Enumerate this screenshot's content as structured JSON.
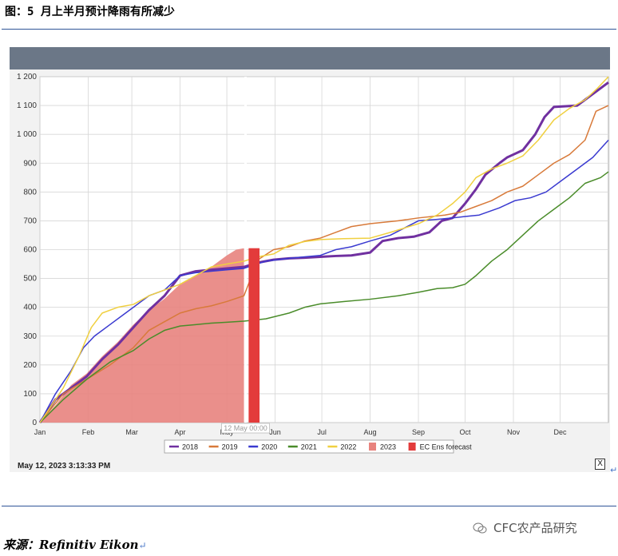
{
  "title": "图：5 月上半月预计降雨有所减少",
  "timestamp": "May 12, 2023 3:13:33 PM",
  "close_label": "X",
  "source_label": "来源：Refinitiv Eikon",
  "brand_label": "CFC农产品研究",
  "chart_data": {
    "type": "line",
    "ylim": [
      0,
      1200
    ],
    "yticks": [
      0,
      100,
      200,
      300,
      400,
      500,
      600,
      700,
      800,
      900,
      1000,
      1100,
      1200
    ],
    "ytick_labels": [
      "0",
      "100",
      "200",
      "300",
      "400",
      "500",
      "600",
      "700",
      "800",
      "900",
      "1 000",
      "1 100",
      "1 200"
    ],
    "x_domain": [
      0,
      365
    ],
    "months": [
      "Jan",
      "Feb",
      "Mar",
      "Apr",
      "May",
      "Jun",
      "Jul",
      "Aug",
      "Sep",
      "Oct",
      "Nov",
      "Dec"
    ],
    "month_days": [
      0,
      31,
      59,
      90,
      120,
      151,
      181,
      212,
      243,
      273,
      304,
      334
    ],
    "cursor_label": "12 May 00:00",
    "cursor_day": 132,
    "series": [
      {
        "name": "2018",
        "color": "#7030a0",
        "width": 3,
        "points": [
          [
            0,
            0
          ],
          [
            10,
            80
          ],
          [
            20,
            120
          ],
          [
            30,
            160
          ],
          [
            40,
            220
          ],
          [
            50,
            270
          ],
          [
            60,
            330
          ],
          [
            70,
            390
          ],
          [
            80,
            440
          ],
          [
            90,
            510
          ],
          [
            100,
            525
          ],
          [
            110,
            530
          ],
          [
            120,
            535
          ],
          [
            131,
            540
          ],
          [
            140,
            555
          ],
          [
            150,
            565
          ],
          [
            160,
            570
          ],
          [
            170,
            572
          ],
          [
            180,
            575
          ],
          [
            190,
            578
          ],
          [
            200,
            580
          ],
          [
            212,
            590
          ],
          [
            220,
            630
          ],
          [
            230,
            640
          ],
          [
            240,
            645
          ],
          [
            250,
            660
          ],
          [
            258,
            700
          ],
          [
            265,
            710
          ],
          [
            273,
            760
          ],
          [
            280,
            810
          ],
          [
            286,
            860
          ],
          [
            295,
            900
          ],
          [
            300,
            920
          ],
          [
            310,
            945
          ],
          [
            318,
            1000
          ],
          [
            324,
            1060
          ],
          [
            330,
            1095
          ],
          [
            345,
            1100
          ],
          [
            365,
            1180
          ]
        ]
      },
      {
        "name": "2019",
        "color": "#d87a3a",
        "width": 1.5,
        "points": [
          [
            0,
            0
          ],
          [
            15,
            100
          ],
          [
            30,
            150
          ],
          [
            45,
            200
          ],
          [
            60,
            260
          ],
          [
            70,
            320
          ],
          [
            80,
            350
          ],
          [
            90,
            380
          ],
          [
            100,
            395
          ],
          [
            110,
            405
          ],
          [
            120,
            420
          ],
          [
            131,
            440
          ],
          [
            140,
            565
          ],
          [
            150,
            600
          ],
          [
            160,
            610
          ],
          [
            170,
            630
          ],
          [
            180,
            640
          ],
          [
            190,
            660
          ],
          [
            200,
            680
          ],
          [
            212,
            690
          ],
          [
            230,
            700
          ],
          [
            243,
            710
          ],
          [
            260,
            720
          ],
          [
            270,
            730
          ],
          [
            280,
            750
          ],
          [
            290,
            770
          ],
          [
            300,
            800
          ],
          [
            310,
            820
          ],
          [
            320,
            860
          ],
          [
            330,
            900
          ],
          [
            340,
            930
          ],
          [
            350,
            980
          ],
          [
            357,
            1080
          ],
          [
            365,
            1100
          ]
        ]
      },
      {
        "name": "2020",
        "color": "#3a3ad0",
        "width": 1.5,
        "points": [
          [
            0,
            0
          ],
          [
            10,
            100
          ],
          [
            20,
            180
          ],
          [
            28,
            260
          ],
          [
            35,
            300
          ],
          [
            45,
            340
          ],
          [
            55,
            380
          ],
          [
            65,
            420
          ],
          [
            70,
            440
          ],
          [
            80,
            460
          ],
          [
            90,
            510
          ],
          [
            100,
            520
          ],
          [
            110,
            525
          ],
          [
            120,
            530
          ],
          [
            131,
            535
          ],
          [
            145,
            560
          ],
          [
            160,
            570
          ],
          [
            170,
            575
          ],
          [
            180,
            580
          ],
          [
            190,
            600
          ],
          [
            200,
            610
          ],
          [
            212,
            630
          ],
          [
            225,
            650
          ],
          [
            243,
            700
          ],
          [
            255,
            705
          ],
          [
            265,
            710
          ],
          [
            273,
            715
          ],
          [
            282,
            720
          ],
          [
            295,
            745
          ],
          [
            305,
            770
          ],
          [
            315,
            780
          ],
          [
            325,
            800
          ],
          [
            335,
            840
          ],
          [
            345,
            880
          ],
          [
            355,
            920
          ],
          [
            365,
            980
          ]
        ]
      },
      {
        "name": "2021",
        "color": "#4a8c2a",
        "width": 1.5,
        "points": [
          [
            0,
            0
          ],
          [
            15,
            80
          ],
          [
            30,
            150
          ],
          [
            45,
            210
          ],
          [
            60,
            250
          ],
          [
            70,
            290
          ],
          [
            80,
            320
          ],
          [
            90,
            335
          ],
          [
            100,
            340
          ],
          [
            110,
            345
          ],
          [
            120,
            348
          ],
          [
            131,
            352
          ],
          [
            145,
            360
          ],
          [
            160,
            380
          ],
          [
            170,
            400
          ],
          [
            180,
            412
          ],
          [
            195,
            420
          ],
          [
            212,
            428
          ],
          [
            230,
            440
          ],
          [
            243,
            452
          ],
          [
            255,
            465
          ],
          [
            265,
            468
          ],
          [
            273,
            480
          ],
          [
            280,
            510
          ],
          [
            290,
            560
          ],
          [
            300,
            600
          ],
          [
            310,
            650
          ],
          [
            320,
            700
          ],
          [
            330,
            740
          ],
          [
            340,
            780
          ],
          [
            350,
            830
          ],
          [
            360,
            850
          ],
          [
            365,
            870
          ]
        ]
      },
      {
        "name": "2022",
        "color": "#f0d040",
        "width": 1.5,
        "points": [
          [
            0,
            0
          ],
          [
            15,
            120
          ],
          [
            25,
            230
          ],
          [
            33,
            330
          ],
          [
            40,
            380
          ],
          [
            50,
            400
          ],
          [
            60,
            410
          ],
          [
            70,
            440
          ],
          [
            80,
            460
          ],
          [
            90,
            480
          ],
          [
            100,
            510
          ],
          [
            110,
            540
          ],
          [
            120,
            550
          ],
          [
            131,
            560
          ],
          [
            140,
            575
          ],
          [
            150,
            585
          ],
          [
            160,
            615
          ],
          [
            170,
            628
          ],
          [
            180,
            635
          ],
          [
            195,
            638
          ],
          [
            212,
            640
          ],
          [
            225,
            660
          ],
          [
            243,
            690
          ],
          [
            255,
            720
          ],
          [
            265,
            760
          ],
          [
            273,
            800
          ],
          [
            280,
            850
          ],
          [
            290,
            880
          ],
          [
            300,
            900
          ],
          [
            310,
            925
          ],
          [
            320,
            980
          ],
          [
            330,
            1050
          ],
          [
            340,
            1090
          ],
          [
            350,
            1120
          ],
          [
            358,
            1160
          ],
          [
            365,
            1200
          ]
        ]
      }
    ],
    "areas": [
      {
        "name": "2023",
        "color": "#e8837e",
        "points": [
          [
            0,
            0
          ],
          [
            10,
            60
          ],
          [
            20,
            130
          ],
          [
            30,
            170
          ],
          [
            40,
            230
          ],
          [
            50,
            280
          ],
          [
            60,
            340
          ],
          [
            70,
            390
          ],
          [
            80,
            430
          ],
          [
            90,
            480
          ],
          [
            100,
            510
          ],
          [
            110,
            540
          ],
          [
            115,
            560
          ],
          [
            120,
            580
          ],
          [
            126,
            600
          ],
          [
            131,
            605
          ]
        ]
      }
    ],
    "forecast": {
      "name": "EC Ens forecast",
      "color": "#e33b3b",
      "start_day": 134,
      "end_day": 141,
      "value": 605
    },
    "legend": [
      {
        "name": "2018",
        "color": "#7030a0",
        "kind": "line"
      },
      {
        "name": "2019",
        "color": "#d87a3a",
        "kind": "line"
      },
      {
        "name": "2020",
        "color": "#3a3ad0",
        "kind": "line"
      },
      {
        "name": "2021",
        "color": "#4a8c2a",
        "kind": "line"
      },
      {
        "name": "2022",
        "color": "#f0d040",
        "kind": "line"
      },
      {
        "name": "2023",
        "color": "#e8837e",
        "kind": "box"
      },
      {
        "name": "EC Ens forecast",
        "color": "#e33b3b",
        "kind": "box"
      }
    ]
  }
}
